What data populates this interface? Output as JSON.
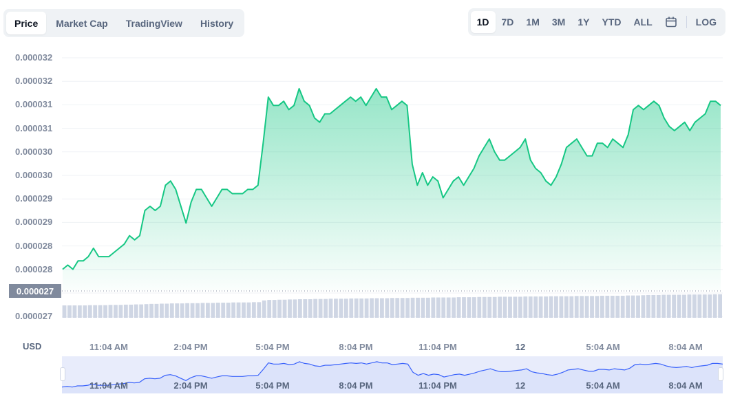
{
  "tabs": [
    {
      "label": "Price",
      "active": true
    },
    {
      "label": "Market Cap",
      "active": false
    },
    {
      "label": "TradingView",
      "active": false
    },
    {
      "label": "History",
      "active": false
    }
  ],
  "ranges": [
    {
      "label": "1D",
      "active": true
    },
    {
      "label": "7D",
      "active": false
    },
    {
      "label": "1M",
      "active": false
    },
    {
      "label": "3M",
      "active": false
    },
    {
      "label": "1Y",
      "active": false
    },
    {
      "label": "YTD",
      "active": false
    },
    {
      "label": "ALL",
      "active": false
    }
  ],
  "log_label": "LOG",
  "calendar_icon": "calendar-icon",
  "colors": {
    "line": "#16c784",
    "area_top": "#16c784",
    "volume": "#cfd6e4",
    "nav_fill": "#e8ecfb",
    "nav_line": "#3861fb"
  },
  "current_price_label": "0.000027",
  "currency_label": "USD",
  "chart_data": {
    "type": "line",
    "ytick_labels": [
      "0.000032",
      "0.000032",
      "0.000031",
      "0.000031",
      "0.000030",
      "0.000030",
      "0.000029",
      "0.000029",
      "0.000028",
      "0.000028",
      "0.000027",
      "0.000027"
    ],
    "xtick_labels": [
      {
        "label": "11:04 AM",
        "bold": false
      },
      {
        "label": "2:04 PM",
        "bold": false
      },
      {
        "label": "5:04 PM",
        "bold": false
      },
      {
        "label": "8:04 PM",
        "bold": false
      },
      {
        "label": "11:04 PM",
        "bold": false
      },
      {
        "label": "12",
        "bold": true
      },
      {
        "label": "5:04 AM",
        "bold": false
      },
      {
        "label": "8:04 AM",
        "bold": false
      }
    ],
    "ylim": [
      2.66e-05,
      3.22e-05
    ],
    "series": [
      {
        "values": [
          2.71e-05,
          2.72e-05,
          2.71e-05,
          2.73e-05,
          2.73e-05,
          2.74e-05,
          2.76e-05,
          2.74e-05,
          2.74e-05,
          2.74e-05,
          2.75e-05,
          2.76e-05,
          2.77e-05,
          2.79e-05,
          2.78e-05,
          2.79e-05,
          2.85e-05,
          2.86e-05,
          2.85e-05,
          2.86e-05,
          2.91e-05,
          2.92e-05,
          2.9e-05,
          2.86e-05,
          2.82e-05,
          2.87e-05,
          2.9e-05,
          2.9e-05,
          2.88e-05,
          2.86e-05,
          2.88e-05,
          2.9e-05,
          2.9e-05,
          2.89e-05,
          2.89e-05,
          2.89e-05,
          2.9e-05,
          2.9e-05,
          2.91e-05,
          3.01e-05,
          3.12e-05,
          3.1e-05,
          3.1e-05,
          3.11e-05,
          3.09e-05,
          3.1e-05,
          3.14e-05,
          3.11e-05,
          3.1e-05,
          3.07e-05,
          3.06e-05,
          3.08e-05,
          3.08e-05,
          3.09e-05,
          3.1e-05,
          3.11e-05,
          3.12e-05,
          3.11e-05,
          3.12e-05,
          3.1e-05,
          3.12e-05,
          3.14e-05,
          3.12e-05,
          3.12e-05,
          3.09e-05,
          3.1e-05,
          3.11e-05,
          3.1e-05,
          2.96e-05,
          2.91e-05,
          2.94e-05,
          2.91e-05,
          2.93e-05,
          2.92e-05,
          2.88e-05,
          2.9e-05,
          2.92e-05,
          2.93e-05,
          2.91e-05,
          2.93e-05,
          2.95e-05,
          2.98e-05,
          3e-05,
          3.02e-05,
          2.99e-05,
          2.97e-05,
          2.97e-05,
          2.98e-05,
          2.99e-05,
          3e-05,
          3.02e-05,
          2.97e-05,
          2.95e-05,
          2.94e-05,
          2.92e-05,
          2.91e-05,
          2.93e-05,
          2.96e-05,
          3e-05,
          3.01e-05,
          3.02e-05,
          3e-05,
          2.98e-05,
          2.98e-05,
          3.01e-05,
          3.01e-05,
          3e-05,
          3.02e-05,
          3.01e-05,
          3e-05,
          3.03e-05,
          3.09e-05,
          3.1e-05,
          3.09e-05,
          3.1e-05,
          3.11e-05,
          3.1e-05,
          3.07e-05,
          3.05e-05,
          3.04e-05,
          3.05e-05,
          3.06e-05,
          3.04e-05,
          3.06e-05,
          3.07e-05,
          3.08e-05,
          3.11e-05,
          3.11e-05,
          3.1e-05
        ],
        "name": ""
      }
    ],
    "volume": [
      0.5,
      0.5,
      0.5,
      0.5,
      0.5,
      0.51,
      0.51,
      0.51,
      0.51,
      0.52,
      0.52,
      0.52,
      0.53,
      0.53,
      0.54,
      0.54,
      0.55,
      0.56,
      0.56,
      0.57,
      0.57,
      0.58,
      0.58,
      0.58,
      0.59,
      0.59,
      0.59,
      0.6,
      0.6,
      0.6,
      0.61,
      0.61,
      0.61,
      0.62,
      0.62,
      0.62,
      0.62,
      0.63,
      0.63,
      0.7,
      0.72,
      0.72,
      0.73,
      0.73,
      0.74,
      0.74,
      0.75,
      0.75,
      0.75,
      0.76,
      0.76,
      0.76,
      0.77,
      0.77,
      0.77,
      0.77,
      0.78,
      0.78,
      0.78,
      0.78,
      0.79,
      0.79,
      0.79,
      0.79,
      0.8,
      0.8,
      0.8,
      0.8,
      0.81,
      0.81,
      0.81,
      0.81,
      0.82,
      0.82,
      0.82,
      0.82,
      0.82,
      0.83,
      0.83,
      0.83,
      0.83,
      0.84,
      0.84,
      0.84,
      0.84,
      0.85,
      0.85,
      0.85,
      0.85,
      0.85,
      0.86,
      0.86,
      0.86,
      0.86,
      0.86,
      0.87,
      0.87,
      0.87,
      0.87,
      0.87,
      0.88,
      0.88,
      0.88,
      0.88,
      0.88,
      0.89,
      0.89,
      0.89,
      0.89,
      0.89,
      0.9,
      0.9,
      0.9,
      0.91,
      0.92,
      0.92,
      0.92,
      0.93,
      0.93,
      0.93,
      0.93,
      0.93,
      0.94,
      0.94,
      0.94,
      0.94,
      0.94,
      0.95,
      0.95
    ],
    "grid": true,
    "legend": "none"
  }
}
